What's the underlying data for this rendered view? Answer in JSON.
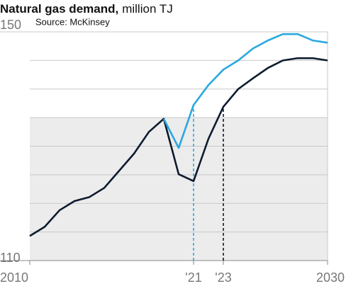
{
  "chart_data": {
    "type": "line",
    "title": "Natural gas demand,",
    "unit": "million TJ",
    "source": "Source: McKinsey",
    "x": [
      2010,
      2011,
      2012,
      2013,
      2014,
      2015,
      2016,
      2017,
      2018,
      2019,
      2020,
      2021,
      2022,
      2023,
      2024,
      2025,
      2026,
      2027,
      2028,
      2029,
      2030
    ],
    "series": [
      {
        "color": "#0d1b2e",
        "values": [
          114.3,
          115.9,
          118.8,
          120.4,
          121.1,
          122.7,
          125.7,
          128.7,
          132.5,
          134.8,
          125.1,
          123.9,
          131.3,
          136.9,
          140.0,
          141.9,
          143.7,
          145.0,
          145.4,
          145.4,
          145.0
        ]
      },
      {
        "color": "#29a8e0",
        "values": [
          null,
          null,
          null,
          null,
          null,
          null,
          null,
          null,
          null,
          134.8,
          129.7,
          137.2,
          140.7,
          143.4,
          145.0,
          147.1,
          148.5,
          149.6,
          149.6,
          148.5,
          148.1
        ]
      }
    ],
    "xlim": [
      2010,
      2030
    ],
    "xticks": [
      2010,
      {
        "value": 2021,
        "label": "'21"
      },
      {
        "value": 2023,
        "label": "'23"
      },
      2030
    ],
    "ylim": [
      110,
      150
    ],
    "yticks": [
      110,
      150
    ],
    "ygrid": [
      115,
      120,
      125,
      130,
      135,
      140,
      145
    ],
    "shade_ylim": [
      110,
      135
    ],
    "dashed": [
      {
        "x": 2021,
        "series": 1
      },
      {
        "x": 2023,
        "series": 0
      }
    ]
  }
}
